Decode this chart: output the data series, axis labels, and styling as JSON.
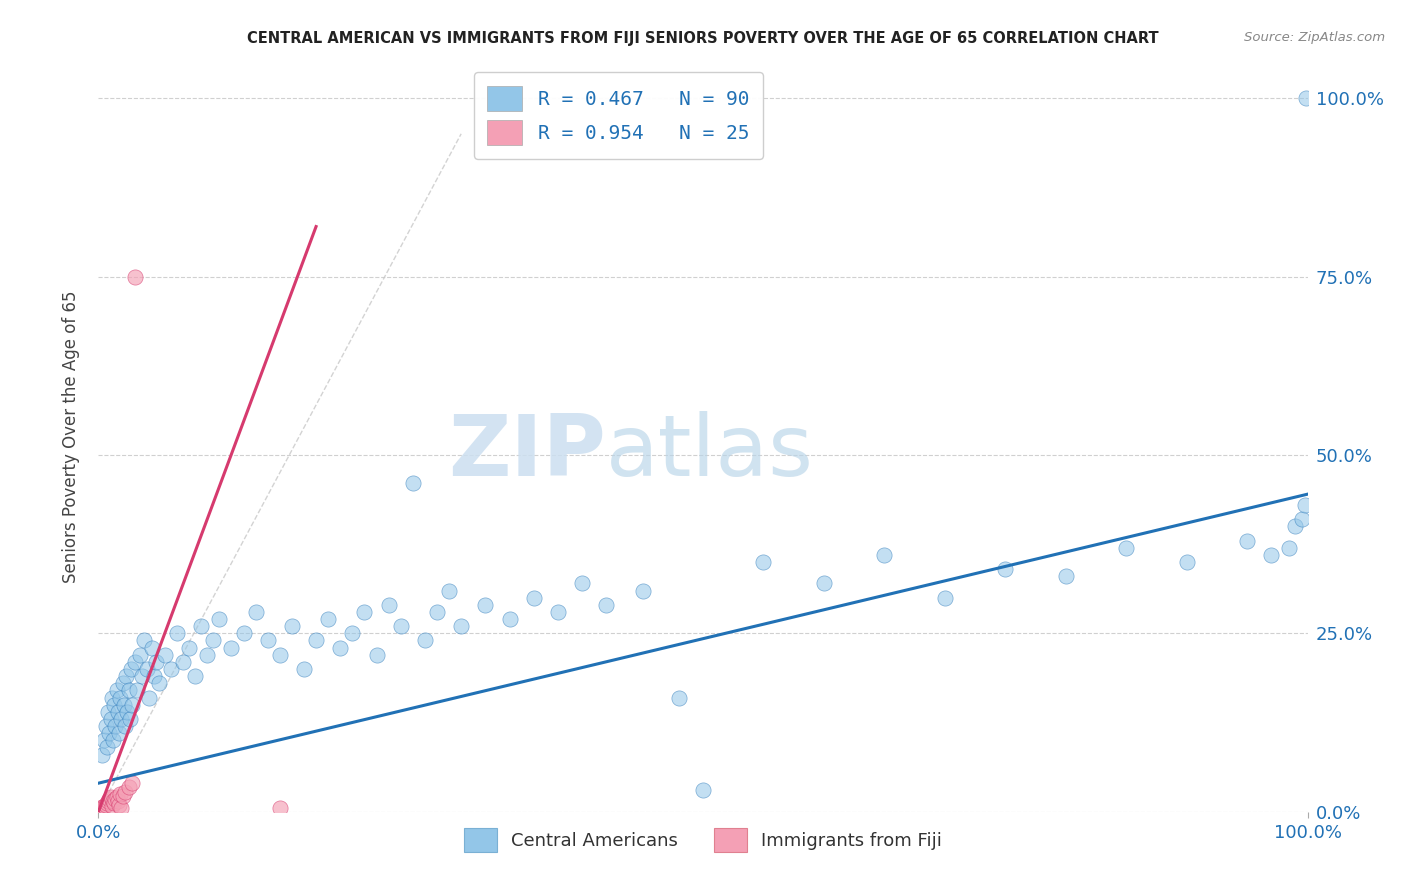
{
  "title": "CENTRAL AMERICAN VS IMMIGRANTS FROM FIJI SENIORS POVERTY OVER THE AGE OF 65 CORRELATION CHART",
  "source": "Source: ZipAtlas.com",
  "ylabel": "Seniors Poverty Over the Age of 65",
  "legend_label1": "R = 0.467   N = 90",
  "legend_label2": "R = 0.954   N = 25",
  "legend_bottom1": "Central Americans",
  "legend_bottom2": "Immigrants from Fiji",
  "color_blue": "#93c6e8",
  "color_pink": "#f4a0b5",
  "line_blue": "#2171b5",
  "line_pink": "#d63a6e",
  "line_diag": "#c8c8c8",
  "watermark_zip": "ZIP",
  "watermark_atlas": "atlas",
  "blue_x": [
    0.003,
    0.005,
    0.006,
    0.007,
    0.008,
    0.009,
    0.01,
    0.011,
    0.012,
    0.013,
    0.014,
    0.015,
    0.016,
    0.017,
    0.018,
    0.019,
    0.02,
    0.021,
    0.022,
    0.023,
    0.024,
    0.025,
    0.026,
    0.027,
    0.028,
    0.03,
    0.032,
    0.034,
    0.036,
    0.038,
    0.04,
    0.042,
    0.044,
    0.046,
    0.048,
    0.05,
    0.055,
    0.06,
    0.065,
    0.07,
    0.075,
    0.08,
    0.085,
    0.09,
    0.095,
    0.1,
    0.11,
    0.12,
    0.13,
    0.14,
    0.15,
    0.16,
    0.17,
    0.18,
    0.19,
    0.2,
    0.21,
    0.22,
    0.23,
    0.24,
    0.25,
    0.26,
    0.27,
    0.28,
    0.29,
    0.3,
    0.32,
    0.34,
    0.36,
    0.38,
    0.4,
    0.42,
    0.45,
    0.48,
    0.5,
    0.55,
    0.6,
    0.65,
    0.7,
    0.75,
    0.8,
    0.85,
    0.9,
    0.95,
    0.97,
    0.985,
    0.99,
    0.995,
    0.998,
    0.999
  ],
  "blue_y": [
    0.08,
    0.1,
    0.12,
    0.09,
    0.14,
    0.11,
    0.13,
    0.16,
    0.1,
    0.15,
    0.12,
    0.17,
    0.14,
    0.11,
    0.16,
    0.13,
    0.18,
    0.15,
    0.12,
    0.19,
    0.14,
    0.17,
    0.13,
    0.2,
    0.15,
    0.21,
    0.17,
    0.22,
    0.19,
    0.24,
    0.2,
    0.16,
    0.23,
    0.19,
    0.21,
    0.18,
    0.22,
    0.2,
    0.25,
    0.21,
    0.23,
    0.19,
    0.26,
    0.22,
    0.24,
    0.27,
    0.23,
    0.25,
    0.28,
    0.24,
    0.22,
    0.26,
    0.2,
    0.24,
    0.27,
    0.23,
    0.25,
    0.28,
    0.22,
    0.29,
    0.26,
    0.46,
    0.24,
    0.28,
    0.31,
    0.26,
    0.29,
    0.27,
    0.3,
    0.28,
    0.32,
    0.29,
    0.31,
    0.16,
    0.03,
    0.35,
    0.32,
    0.36,
    0.3,
    0.34,
    0.33,
    0.37,
    0.35,
    0.38,
    0.36,
    0.37,
    0.4,
    0.41,
    0.43,
    1.0
  ],
  "pink_x": [
    0.001,
    0.002,
    0.003,
    0.004,
    0.005,
    0.006,
    0.007,
    0.008,
    0.009,
    0.01,
    0.011,
    0.012,
    0.013,
    0.014,
    0.015,
    0.016,
    0.017,
    0.018,
    0.019,
    0.02,
    0.022,
    0.025,
    0.028,
    0.03,
    0.15
  ],
  "pink_y": [
    0.002,
    0.004,
    0.006,
    0.005,
    0.008,
    0.01,
    0.012,
    0.015,
    0.018,
    0.02,
    0.008,
    0.015,
    0.012,
    0.018,
    0.02,
    0.015,
    0.01,
    0.025,
    0.005,
    0.022,
    0.028,
    0.035,
    0.04,
    0.75,
    0.005
  ],
  "blue_line_x": [
    0.0,
    1.0
  ],
  "blue_line_y": [
    0.04,
    0.445
  ],
  "pink_line_x": [
    0.0,
    0.18
  ],
  "pink_line_y": [
    0.0,
    0.82
  ],
  "diag_line_x": [
    0.0,
    0.3
  ],
  "diag_line_y": [
    0.0,
    0.95
  ],
  "xlim": [
    0.0,
    1.0
  ],
  "ylim": [
    0.0,
    1.05
  ]
}
